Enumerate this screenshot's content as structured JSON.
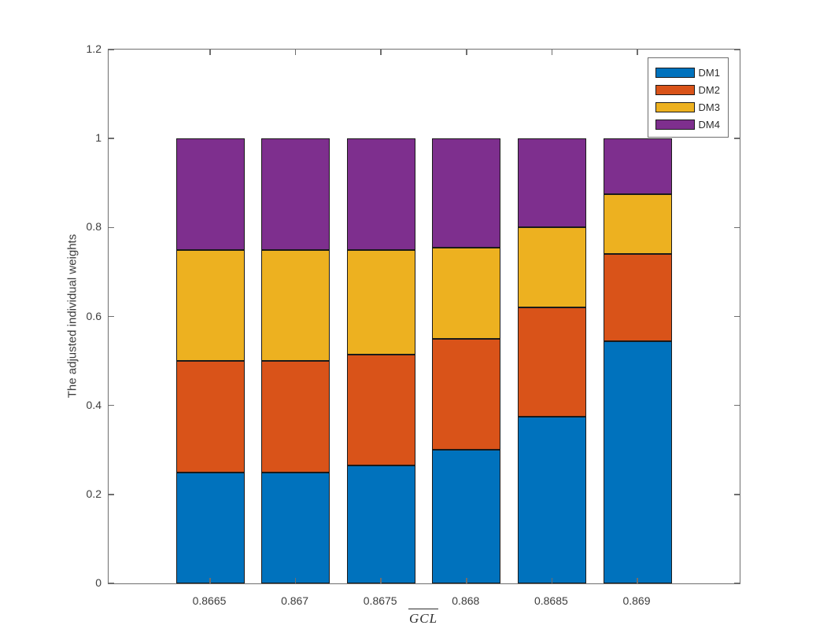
{
  "figure": {
    "background": "#ffffff",
    "axes_color": "#6e6e6e",
    "text_color": "#3d3d3d",
    "bar_edge_color": "#1a1a1a"
  },
  "chart_data": {
    "type": "bar",
    "stacked": true,
    "title": "",
    "xlabel": "GCL",
    "xlabel_overline": true,
    "ylabel": "The adjusted individual weights",
    "categories": [
      "0.8665",
      "0.867",
      "0.8675",
      "0.868",
      "0.8685",
      "0.869"
    ],
    "series": [
      {
        "name": "DM1",
        "color": "#0072BD",
        "values": [
          0.25,
          0.25,
          0.265,
          0.3,
          0.375,
          0.545
        ]
      },
      {
        "name": "DM2",
        "color": "#D95319",
        "values": [
          0.25,
          0.25,
          0.25,
          0.25,
          0.245,
          0.195
        ]
      },
      {
        "name": "DM3",
        "color": "#EDB120",
        "values": [
          0.25,
          0.25,
          0.235,
          0.205,
          0.18,
          0.135
        ]
      },
      {
        "name": "DM4",
        "color": "#7E2F8E",
        "values": [
          0.25,
          0.25,
          0.25,
          0.245,
          0.2,
          0.125
        ]
      }
    ],
    "ylim": [
      0,
      1.2
    ],
    "yticks": [
      0,
      0.2,
      0.4,
      0.6,
      0.8,
      1,
      1.2
    ],
    "ytick_labels": [
      "0",
      "0.2",
      "0.4",
      "0.6",
      "0.8",
      "1",
      "1.2"
    ],
    "legend": {
      "position": "top-right",
      "entries": [
        "DM1",
        "DM2",
        "DM3",
        "DM4"
      ]
    },
    "grid": false
  }
}
